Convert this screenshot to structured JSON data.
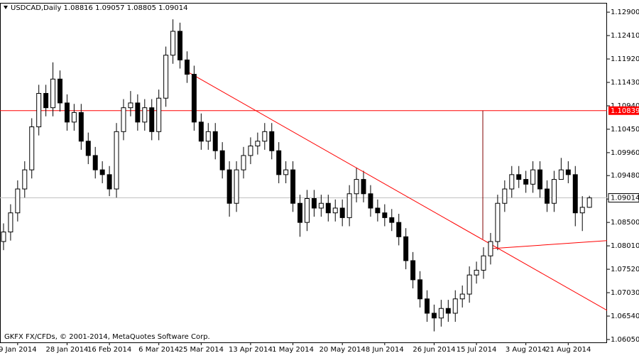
{
  "chart_data": {
    "type": "candlestick",
    "title": "USDCAD,Daily  1.08816 1.09057 1.08805 1.09014",
    "footer": "GKFX FX/CFDs, © 2001-2014, MetaQuotes Software Corp.",
    "open": [
      1.081,
      1.083,
      1.087,
      1.092,
      1.096,
      1.105,
      1.112,
      1.109,
      1.115,
      1.11,
      1.106,
      1.108,
      1.102,
      1.099,
      1.096,
      1.095,
      1.092,
      1.104,
      1.109,
      1.11,
      1.106,
      1.109,
      1.104,
      1.111,
      1.12,
      1.125,
      1.119,
      1.116,
      1.106,
      1.102,
      1.104,
      1.1,
      1.096,
      1.089,
      1.096,
      1.099,
      1.101,
      1.102,
      1.104,
      1.1,
      1.095,
      1.096,
      1.089,
      1.085,
      1.09,
      1.088,
      1.089,
      1.087,
      1.088,
      1.086,
      1.091,
      1.094,
      1.091,
      1.088,
      1.087,
      1.086,
      1.085,
      1.082,
      1.077,
      1.073,
      1.069,
      1.066,
      1.065,
      1.067,
      1.066,
      1.069,
      1.07,
      1.074,
      1.075,
      1.078,
      1.081,
      1.089,
      1.092,
      1.095,
      1.094,
      1.093,
      1.096,
      1.092,
      1.089,
      1.094,
      1.096,
      1.095,
      1.087,
      1.08816
    ],
    "high": [
      1.0848,
      1.0888,
      1.0938,
      1.0978,
      1.1068,
      1.1138,
      1.1138,
      1.1185,
      1.1168,
      1.1118,
      1.1098,
      1.1098,
      1.1038,
      1.1008,
      1.0978,
      1.0968,
      1.1058,
      1.1108,
      1.1125,
      1.1118,
      1.1108,
      1.1108,
      1.1128,
      1.1218,
      1.1275,
      1.1268,
      1.1208,
      1.1178,
      1.1078,
      1.1058,
      1.1058,
      1.1018,
      1.0978,
      1.0978,
      1.1008,
      1.1028,
      1.1038,
      1.1058,
      1.1058,
      1.1018,
      1.0978,
      1.0978,
      1.0908,
      1.0918,
      1.0918,
      1.0908,
      1.0908,
      1.0898,
      1.0898,
      1.0928,
      1.0965,
      1.0958,
      1.0928,
      1.0898,
      1.0888,
      1.0878,
      1.0868,
      1.0838,
      1.0788,
      1.0748,
      1.0708,
      1.0678,
      1.0688,
      1.0688,
      1.0708,
      1.0718,
      1.0758,
      1.0768,
      1.0798,
      1.0828,
      1.0908,
      1.0938,
      1.0968,
      1.0968,
      1.0958,
      1.0978,
      1.0978,
      1.0938,
      1.0958,
      1.0985,
      1.0978,
      1.0968,
      1.0905,
      1.09057
    ],
    "low": [
      1.0792,
      1.0812,
      1.0852,
      1.0902,
      1.0942,
      1.1032,
      1.1072,
      1.1072,
      1.1082,
      1.1042,
      1.1042,
      1.1002,
      1.0972,
      1.0942,
      1.0932,
      1.0905,
      1.0902,
      1.1022,
      1.1072,
      1.1042,
      1.1042,
      1.1022,
      1.1022,
      1.1092,
      1.1182,
      1.1172,
      1.1142,
      1.1042,
      1.1002,
      1.1002,
      1.0982,
      1.0942,
      1.0862,
      1.0872,
      1.0942,
      1.0972,
      1.0992,
      1.1002,
      1.0982,
      1.0932,
      1.0932,
      1.0872,
      1.082,
      1.0832,
      1.0862,
      1.0862,
      1.0852,
      1.0852,
      1.0842,
      1.0842,
      1.0892,
      1.0892,
      1.0862,
      1.0852,
      1.0842,
      1.0832,
      1.0802,
      1.0752,
      1.0712,
      1.0672,
      1.0642,
      1.0622,
      1.0632,
      1.0642,
      1.0642,
      1.0672,
      1.0682,
      1.0722,
      1.0732,
      1.0762,
      1.0792,
      1.0872,
      1.0902,
      1.0922,
      1.0912,
      1.0912,
      1.0902,
      1.0872,
      1.0872,
      1.0942,
      1.0932,
      1.0842,
      1.0832,
      1.08805
    ],
    "close": [
      1.083,
      1.087,
      1.092,
      1.096,
      1.105,
      1.112,
      1.109,
      1.115,
      1.11,
      1.106,
      1.108,
      1.102,
      1.099,
      1.096,
      1.095,
      1.092,
      1.104,
      1.109,
      1.11,
      1.106,
      1.109,
      1.104,
      1.111,
      1.12,
      1.125,
      1.119,
      1.116,
      1.106,
      1.102,
      1.104,
      1.1,
      1.096,
      1.089,
      1.096,
      1.099,
      1.101,
      1.102,
      1.104,
      1.1,
      1.095,
      1.096,
      1.089,
      1.085,
      1.09,
      1.088,
      1.089,
      1.087,
      1.088,
      1.086,
      1.091,
      1.094,
      1.091,
      1.088,
      1.087,
      1.086,
      1.085,
      1.082,
      1.077,
      1.073,
      1.069,
      1.066,
      1.065,
      1.067,
      1.066,
      1.069,
      1.07,
      1.074,
      1.075,
      1.078,
      1.081,
      1.089,
      1.092,
      1.095,
      1.094,
      1.093,
      1.096,
      1.092,
      1.089,
      1.094,
      1.096,
      1.095,
      1.087,
      1.08816,
      1.09014
    ],
    "bull_color": "#ffffff",
    "bear_color": "#000000",
    "line_color": "#ff0000",
    "xlim": [
      -0.5,
      85.5
    ],
    "xticks": [
      {
        "value": 2,
        "label": "9 Jan 2014"
      },
      {
        "value": 9,
        "label": "28 Jan 2014"
      },
      {
        "value": 15,
        "label": "16 Feb 2014"
      },
      {
        "value": 22,
        "label": "6 Mar 2014"
      },
      {
        "value": 28,
        "label": "25 Mar 2014"
      },
      {
        "value": 35,
        "label": "13 Apr 2014"
      },
      {
        "value": 41,
        "label": "1 May 2014"
      },
      {
        "value": 48,
        "label": "20 May 2014"
      },
      {
        "value": 54,
        "label": "8 Jun 2014"
      },
      {
        "value": 61,
        "label": "26 Jun 2014"
      },
      {
        "value": 67,
        "label": "15 Jul 2014"
      },
      {
        "value": 74,
        "label": "3 Aug 2014"
      },
      {
        "value": 80,
        "label": "21 Aug 2014"
      }
    ],
    "ylim": [
      1.0599,
      1.1308
    ],
    "yticks": [
      {
        "value": 1.129,
        "label": "1.12900"
      },
      {
        "value": 1.1241,
        "label": "1.12410"
      },
      {
        "value": 1.1192,
        "label": "1.11920"
      },
      {
        "value": 1.1143,
        "label": "1.11430"
      },
      {
        "value": 1.1094,
        "label": "1.10940"
      },
      {
        "value": 1.1045,
        "label": "1.10450"
      },
      {
        "value": 1.0996,
        "label": "1.09960"
      },
      {
        "value": 1.0948,
        "label": "1.09480"
      },
      {
        "value": 1.0899,
        "label": "1.08990"
      },
      {
        "value": 1.085,
        "label": "1.08500"
      },
      {
        "value": 1.0801,
        "label": "1.08010"
      },
      {
        "value": 1.0752,
        "label": "1.07520"
      },
      {
        "value": 1.0703,
        "label": "1.07030"
      },
      {
        "value": 1.0654,
        "label": "1.06540"
      },
      {
        "value": 1.0605,
        "label": "1.06050"
      }
    ],
    "bid": {
      "value": 1.09014,
      "label": "1.09014"
    },
    "hline": {
      "value": 1.10839,
      "label": "1.10839"
    },
    "vline": {
      "x": 67.9,
      "y1": 1.10839,
      "y2": 1.0815
    },
    "trendlines": [
      {
        "x1": 25.85,
        "y1": 1.1167,
        "x2": 85.5,
        "y2": 1.0666
      },
      {
        "x1": 68.9,
        "y1": 1.0795,
        "x2": 85.5,
        "y2": 1.0812
      }
    ]
  }
}
